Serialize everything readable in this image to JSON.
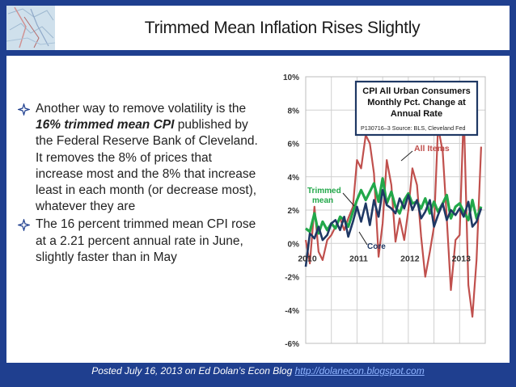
{
  "slide": {
    "title": "Trimmed Mean Inflation Rises Slightly",
    "bullet1": {
      "before": "Another way to remove volatility is the ",
      "emph": "16% trimmed mean CPI",
      "after": " published by the Federal Reserve Bank of Cleveland. It removes the 8% of prices that increase most and the 8% that increase least in each month (or decrease most), whatever they are"
    },
    "bullet2": "The 16 percent trimmed mean CPI rose at a 2.21 percent annual rate in June, slightly faster than in May",
    "footer_text": "Posted July 16, 2013 on Ed Dolan’s Econ Blog ",
    "footer_link": "http://dolanecon.blogspot.com",
    "bullet_icon": "four-point-star-icon",
    "logo_icon": "map-logo-icon"
  },
  "chart_data": {
    "type": "line",
    "title_lines": [
      "CPI All Urban Consumers",
      "Monthly Pct. Change at",
      "Annual Rate"
    ],
    "source": "P130716–3 Source: BLS, Cleveland Fed",
    "x_tick_labels": [
      "2010",
      "2011",
      "2012",
      "2013"
    ],
    "y_ticks": [
      "10%",
      "8%",
      "6%",
      "4%",
      "2%",
      "0%",
      "-2%",
      "-4%",
      "-6%"
    ],
    "ylim": [
      -6,
      10
    ],
    "x_start": 2010,
    "x_end": 2013.5,
    "grid": true,
    "annotations": {
      "all_items": "All Items",
      "trimmed_line1": "Trimmed",
      "trimmed_line2": "mean",
      "core": "Core"
    },
    "colors": {
      "all_items": "#c0504d",
      "trimmed": "#22a84a",
      "core": "#1f3864",
      "grid": "#d0d0d0",
      "title_box": "#1f3864",
      "annotation_red": "#c0504d",
      "annotation_green": "#22a84a",
      "annotation_blue": "#1f3864"
    },
    "series": [
      {
        "name": "All Items",
        "values": [
          [
            2010.0,
            0.2
          ],
          [
            2010.08,
            -1.2
          ],
          [
            2010.17,
            2.2
          ],
          [
            2010.25,
            -0.5
          ],
          [
            2010.33,
            -1.0
          ],
          [
            2010.42,
            0.2
          ],
          [
            2010.5,
            0.5
          ],
          [
            2010.58,
            1.0
          ],
          [
            2010.67,
            1.5
          ],
          [
            2010.75,
            0.8
          ],
          [
            2010.83,
            1.5
          ],
          [
            2010.92,
            2.2
          ],
          [
            2011.0,
            5.0
          ],
          [
            2011.08,
            4.5
          ],
          [
            2011.17,
            6.5
          ],
          [
            2011.25,
            6.0
          ],
          [
            2011.33,
            4.2
          ],
          [
            2011.42,
            -0.8
          ],
          [
            2011.5,
            1.2
          ],
          [
            2011.58,
            5.0
          ],
          [
            2011.67,
            3.5
          ],
          [
            2011.75,
            0.1
          ],
          [
            2011.83,
            1.5
          ],
          [
            2011.92,
            0.2
          ],
          [
            2012.0,
            2.0
          ],
          [
            2012.08,
            4.5
          ],
          [
            2012.17,
            3.5
          ],
          [
            2012.25,
            0.4
          ],
          [
            2012.33,
            -2.0
          ],
          [
            2012.42,
            -0.5
          ],
          [
            2012.5,
            1.0
          ],
          [
            2012.58,
            7.0
          ],
          [
            2012.67,
            5.5
          ],
          [
            2012.75,
            1.5
          ],
          [
            2012.83,
            -2.8
          ],
          [
            2012.92,
            0.2
          ],
          [
            2013.0,
            0.5
          ],
          [
            2013.08,
            8.0
          ],
          [
            2013.17,
            -2.5
          ],
          [
            2013.25,
            -4.4
          ],
          [
            2013.33,
            -1.0
          ],
          [
            2013.42,
            5.8
          ]
        ]
      },
      {
        "name": "Trimmed mean",
        "values": [
          [
            2010.0,
            0.9
          ],
          [
            2010.08,
            0.7
          ],
          [
            2010.17,
            1.8
          ],
          [
            2010.25,
            0.6
          ],
          [
            2010.33,
            1.3
          ],
          [
            2010.42,
            0.8
          ],
          [
            2010.5,
            1.2
          ],
          [
            2010.58,
            0.9
          ],
          [
            2010.67,
            1.6
          ],
          [
            2010.75,
            1.4
          ],
          [
            2010.83,
            1.0
          ],
          [
            2010.92,
            1.9
          ],
          [
            2011.0,
            2.6
          ],
          [
            2011.08,
            3.2
          ],
          [
            2011.17,
            2.6
          ],
          [
            2011.25,
            3.1
          ],
          [
            2011.33,
            3.6
          ],
          [
            2011.42,
            2.5
          ],
          [
            2011.5,
            3.9
          ],
          [
            2011.58,
            2.4
          ],
          [
            2011.67,
            3.1
          ],
          [
            2011.75,
            2.2
          ],
          [
            2011.83,
            1.8
          ],
          [
            2011.92,
            2.6
          ],
          [
            2012.0,
            3.0
          ],
          [
            2012.08,
            2.4
          ],
          [
            2012.17,
            2.5
          ],
          [
            2012.25,
            2.1
          ],
          [
            2012.33,
            2.7
          ],
          [
            2012.42,
            1.8
          ],
          [
            2012.5,
            2.5
          ],
          [
            2012.58,
            1.9
          ],
          [
            2012.67,
            2.4
          ],
          [
            2012.75,
            2.9
          ],
          [
            2012.83,
            1.5
          ],
          [
            2012.92,
            2.2
          ],
          [
            2013.0,
            2.4
          ],
          [
            2013.08,
            1.9
          ],
          [
            2013.17,
            1.4
          ],
          [
            2013.25,
            2.6
          ],
          [
            2013.33,
            1.5
          ],
          [
            2013.42,
            2.21
          ]
        ]
      },
      {
        "name": "Core",
        "values": [
          [
            2010.0,
            -1.4
          ],
          [
            2010.08,
            0.6
          ],
          [
            2010.17,
            0.3
          ],
          [
            2010.25,
            1.0
          ],
          [
            2010.33,
            0.2
          ],
          [
            2010.42,
            0.5
          ],
          [
            2010.5,
            1.2
          ],
          [
            2010.58,
            1.4
          ],
          [
            2010.67,
            0.8
          ],
          [
            2010.75,
            1.6
          ],
          [
            2010.83,
            0.4
          ],
          [
            2010.92,
            1.3
          ],
          [
            2011.0,
            2.2
          ],
          [
            2011.08,
            1.3
          ],
          [
            2011.17,
            2.4
          ],
          [
            2011.25,
            1.1
          ],
          [
            2011.33,
            2.6
          ],
          [
            2011.42,
            1.6
          ],
          [
            2011.5,
            3.2
          ],
          [
            2011.58,
            2.3
          ],
          [
            2011.67,
            2.1
          ],
          [
            2011.75,
            1.8
          ],
          [
            2011.83,
            2.7
          ],
          [
            2011.92,
            2.1
          ],
          [
            2012.0,
            2.9
          ],
          [
            2012.08,
            2.0
          ],
          [
            2012.17,
            2.6
          ],
          [
            2012.25,
            1.5
          ],
          [
            2012.33,
            1.9
          ],
          [
            2012.42,
            2.6
          ],
          [
            2012.5,
            1.0
          ],
          [
            2012.58,
            1.7
          ],
          [
            2012.67,
            2.4
          ],
          [
            2012.75,
            1.4
          ],
          [
            2012.83,
            2.0
          ],
          [
            2012.92,
            1.7
          ],
          [
            2013.0,
            2.1
          ],
          [
            2013.08,
            1.6
          ],
          [
            2013.17,
            2.5
          ],
          [
            2013.25,
            1.0
          ],
          [
            2013.33,
            1.3
          ],
          [
            2013.42,
            2.1
          ]
        ]
      }
    ]
  }
}
